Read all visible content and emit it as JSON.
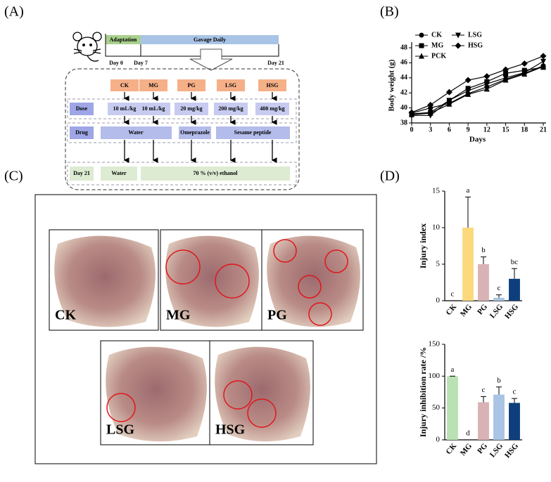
{
  "panel_labels": [
    "(A)",
    "(B)",
    "(C)",
    "(D)"
  ],
  "diagram": {
    "adaptation": "Adaptation",
    "gavage": "Gavage Daily",
    "days": [
      "Day 0",
      "Day 7",
      "Day 21"
    ],
    "groups": [
      "CK",
      "MG",
      "PG",
      "LSG",
      "HSG"
    ],
    "dose": {
      "label": "Dose",
      "values": [
        "10 mL/kg",
        "10 mL/kg",
        "20 mg/kg",
        "200 mg/kg",
        "400 mg/kg"
      ]
    },
    "drug": {
      "label": "Drug",
      "values": [
        "Water",
        "Omeprazole",
        "Sesame peptide"
      ]
    },
    "day21": {
      "label": "Day 21",
      "values": [
        "Water",
        "70 % (v/v) ethanol"
      ]
    }
  },
  "photos": {
    "labels": [
      "CK",
      "MG",
      "PG",
      "LSG",
      "HSG"
    ]
  },
  "chart_data": [
    {
      "type": "line",
      "x_label": "Days",
      "y_label": "Body weight (g)",
      "x": [
        0,
        3,
        6,
        9,
        12,
        15,
        18,
        21
      ],
      "xlim": [
        0,
        21
      ],
      "xticks": [
        0,
        3,
        6,
        9,
        12,
        15,
        18,
        21
      ],
      "ylim": [
        38,
        48
      ],
      "yticks": [
        38,
        40,
        42,
        44,
        46,
        48
      ],
      "series": [
        {
          "name": "CK",
          "color": "#000000",
          "marker": "circle",
          "values": [
            39.3,
            40.0,
            40.6,
            41.9,
            42.8,
            43.8,
            44.6,
            45.6
          ]
        },
        {
          "name": "MG",
          "color": "#000000",
          "marker": "square",
          "values": [
            39.2,
            39.4,
            41.0,
            42.6,
            43.5,
            44.6,
            45.0,
            45.4
          ]
        },
        {
          "name": "PCK",
          "color": "#000000",
          "marker": "triangle-up",
          "values": [
            39.1,
            39.3,
            40.5,
            41.8,
            42.5,
            43.7,
            44.5,
            45.5
          ]
        },
        {
          "name": "LSG",
          "color": "#000000",
          "marker": "triangle-down",
          "values": [
            39.0,
            39.0,
            41.0,
            42.3,
            43.2,
            44.0,
            44.7,
            46.2
          ]
        },
        {
          "name": "HSG",
          "color": "#000000",
          "marker": "diamond",
          "values": [
            39.4,
            40.4,
            42.1,
            43.7,
            44.2,
            45.1,
            45.9,
            46.9
          ]
        }
      ]
    },
    {
      "type": "bar",
      "y_label": "Injury index",
      "categories": [
        "CK",
        "MG",
        "PG",
        "LSG",
        "HSG"
      ],
      "values": [
        0,
        10,
        5,
        0.4,
        3
      ],
      "errors": [
        0,
        4.2,
        1,
        0.4,
        1.4
      ],
      "annotations": [
        "c",
        "a",
        "b",
        "c",
        "bc"
      ],
      "colors": [
        "#b9e1b3",
        "#fbd97c",
        "#d9b2b5",
        "#a9c4e4",
        "#0e3e7c"
      ],
      "ylim": [
        0,
        15
      ],
      "yticks": [
        0,
        5,
        10,
        15
      ]
    },
    {
      "type": "bar",
      "y_label": "Injury inhibition rate /%",
      "categories": [
        "CK",
        "MG",
        "PG",
        "LSG",
        "HSG"
      ],
      "values": [
        100,
        0,
        59,
        71,
        58
      ],
      "errors": [
        0,
        0,
        9,
        12,
        7
      ],
      "annotations": [
        "a",
        "d",
        "c",
        "b",
        "c"
      ],
      "colors": [
        "#b9e1b3",
        "#fbd97c",
        "#d9b2b5",
        "#a9c4e4",
        "#0e3e7c"
      ],
      "ylim": [
        0,
        150
      ],
      "yticks": [
        0,
        50,
        100,
        150
      ]
    }
  ]
}
